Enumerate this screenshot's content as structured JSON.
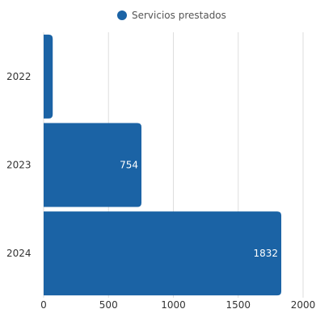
{
  "chart_data": {
    "type": "bar",
    "orientation": "horizontal",
    "categories": [
      "2022",
      "2023",
      "2024"
    ],
    "series": [
      {
        "name": "Servicios prestados",
        "values": [
          70,
          754,
          1832
        ]
      }
    ],
    "data_labels": [
      "",
      "754",
      "1832"
    ],
    "xlim": [
      0,
      2000
    ],
    "x_ticks": [
      0,
      500,
      1000,
      1500,
      2000
    ],
    "x_tick_labels": [
      "0",
      "500",
      "1000",
      "1500",
      "2000"
    ],
    "grid": "vertical",
    "legend_position": "top",
    "colors": {
      "bar": "#1b63a5",
      "grid": "#dddddd",
      "axis_text": "#333333",
      "legend_text": "#555555",
      "data_label": "#ffffff"
    }
  }
}
